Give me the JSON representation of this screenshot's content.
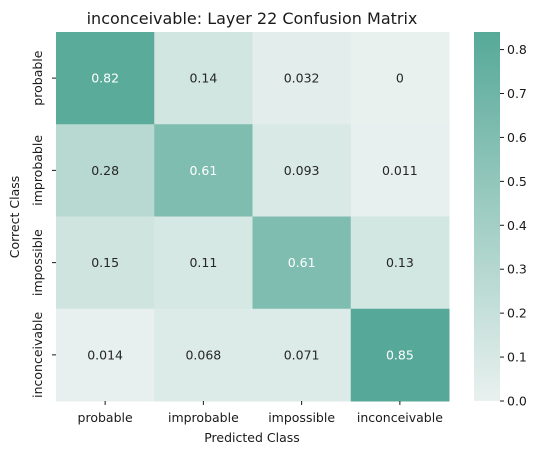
{
  "chart_data": {
    "type": "heatmap",
    "title": "inconceivable: Layer 22 Confusion Matrix",
    "xlabel": "Predicted Class",
    "ylabel": "Correct Class",
    "x_categories": [
      "probable",
      "improbable",
      "impossible",
      "inconceivable"
    ],
    "y_categories": [
      "probable",
      "improbable",
      "impossible",
      "inconceivable"
    ],
    "values": [
      [
        0.82,
        0.14,
        0.032,
        0
      ],
      [
        0.28,
        0.61,
        0.093,
        0.011
      ],
      [
        0.15,
        0.11,
        0.61,
        0.13
      ],
      [
        0.014,
        0.068,
        0.071,
        0.85
      ]
    ],
    "value_labels": [
      [
        "0.82",
        "0.14",
        "0.032",
        "0"
      ],
      [
        "0.28",
        "0.61",
        "0.093",
        "0.011"
      ],
      [
        "0.15",
        "0.11",
        "0.61",
        "0.13"
      ],
      [
        "0.014",
        "0.068",
        "0.071",
        "0.85"
      ]
    ],
    "colorbar": {
      "range": [
        0,
        0.84
      ],
      "ticks": [
        0.0,
        0.1,
        0.2,
        0.3,
        0.4,
        0.5,
        0.6,
        0.7,
        0.8
      ],
      "tick_labels": [
        "0.0",
        "0.1",
        "0.2",
        "0.3",
        "0.4",
        "0.5",
        "0.6",
        "0.7",
        "0.8"
      ],
      "color_low": "#e9f1ef",
      "color_high": "#56a998"
    },
    "grid": false
  }
}
